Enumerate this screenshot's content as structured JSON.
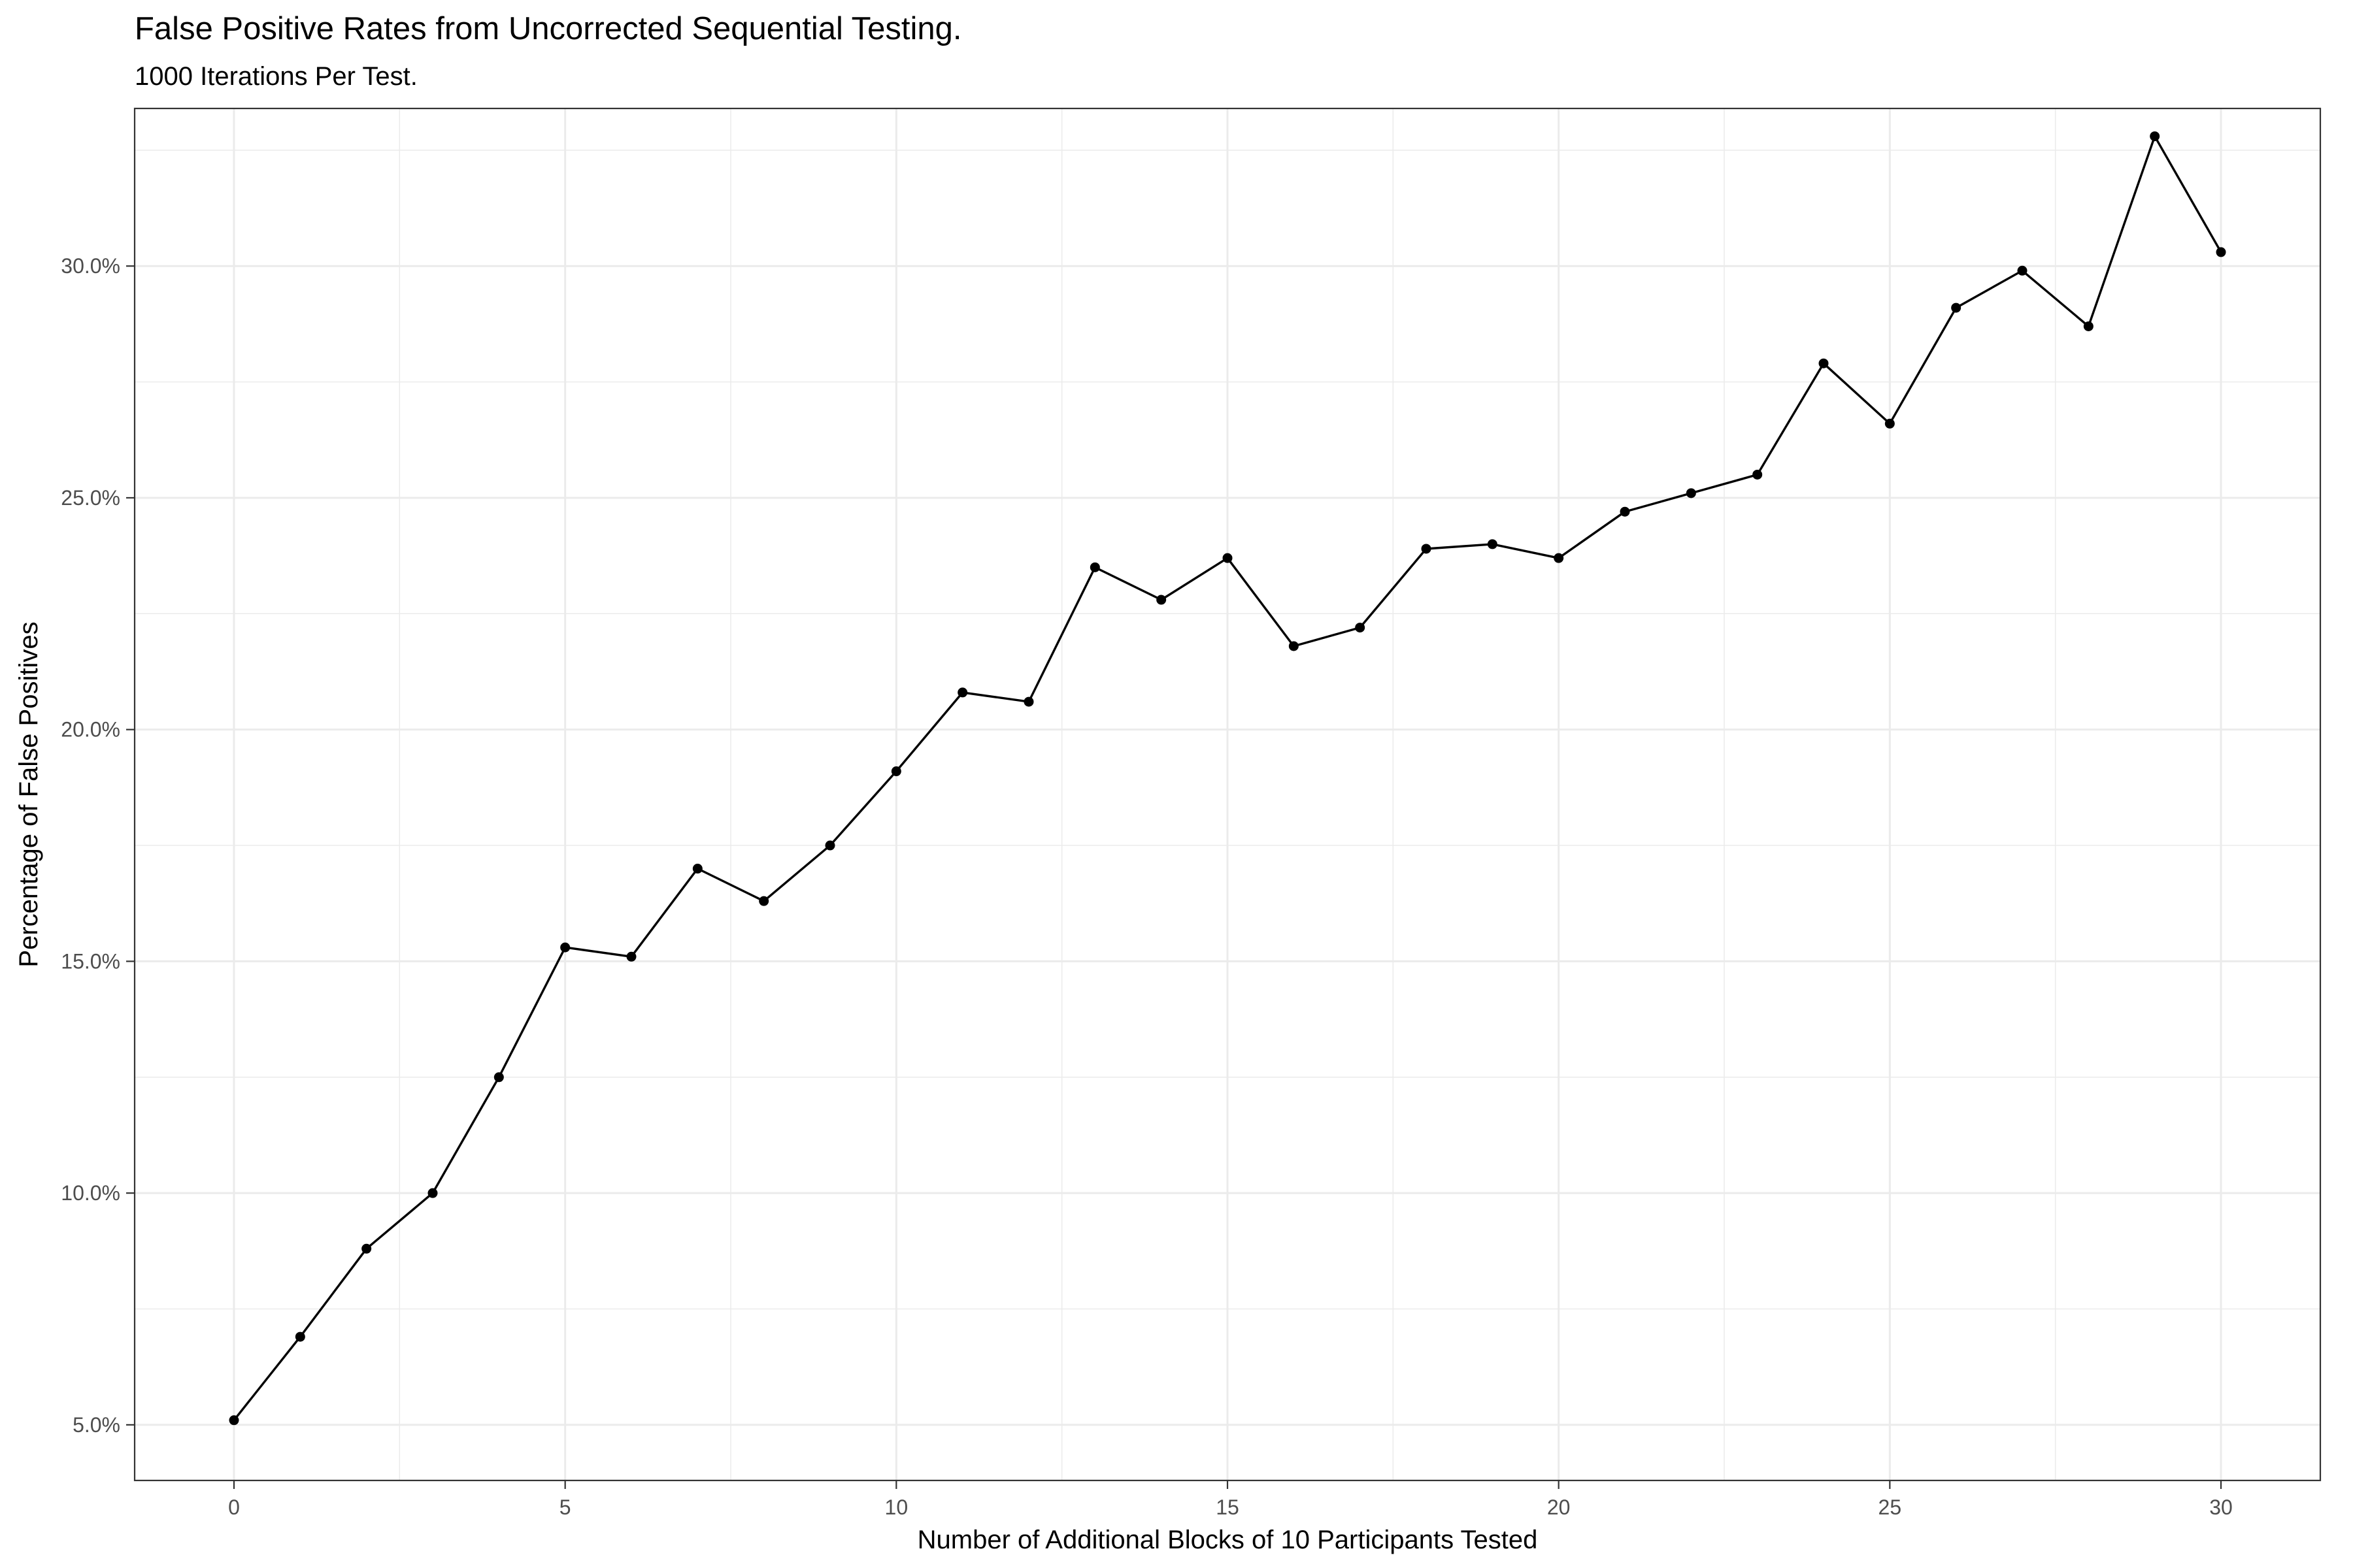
{
  "chart_data": {
    "type": "line",
    "title": "False Positive Rates from Uncorrected Sequential Testing.",
    "subtitle": "1000 Iterations Per Test.",
    "xlabel": "Number of Additional Blocks of 10 Participants Tested",
    "ylabel": "Percentage of False Positives",
    "xlim": [
      -1.5,
      31.5
    ],
    "ylim": [
      3.8,
      33.4
    ],
    "x_ticks": [
      0,
      5,
      10,
      15,
      20,
      25,
      30
    ],
    "x_tick_labels": [
      "0",
      "5",
      "10",
      "15",
      "20",
      "25",
      "30"
    ],
    "y_ticks": [
      5,
      10,
      15,
      20,
      25,
      30
    ],
    "y_tick_labels": [
      "5.0%",
      "10.0%",
      "15.0%",
      "20.0%",
      "25.0%",
      "30.0%"
    ],
    "grid": true,
    "line_color": "#000000",
    "grid_color": "#ebebeb",
    "series": [
      {
        "x": [
          0,
          1,
          2,
          3,
          4,
          5,
          6,
          7,
          8,
          9,
          10,
          11,
          12,
          13,
          14,
          15,
          16,
          17,
          18,
          19,
          20,
          21,
          22,
          23,
          24,
          25,
          26,
          27,
          28,
          29,
          30
        ],
        "y": [
          5.1,
          6.9,
          8.8,
          10.0,
          12.5,
          15.3,
          15.1,
          17.0,
          16.3,
          17.5,
          19.1,
          20.8,
          20.6,
          23.5,
          22.8,
          23.7,
          21.8,
          22.2,
          23.9,
          24.0,
          23.7,
          24.7,
          25.1,
          25.5,
          27.9,
          26.6,
          29.1,
          29.9,
          28.7,
          32.8,
          30.3
        ]
      }
    ]
  }
}
